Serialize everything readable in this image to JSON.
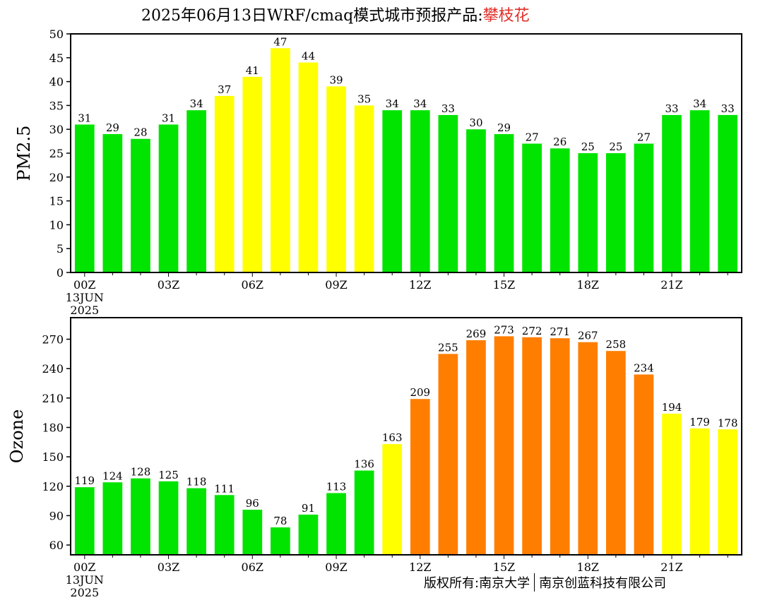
{
  "title": {
    "prefix": "2025年06月13日WRF/cmaq模式城市预报产品:",
    "city": "攀枝花"
  },
  "copyright": {
    "left": "版权所有:南京大学",
    "right": "南京创蓝科技有限公司"
  },
  "colors": {
    "green": "#00e400",
    "yellow": "#ffff00",
    "orange": "#ff7e00"
  },
  "chart_data": [
    {
      "type": "bar",
      "ylabel": "PM2.5",
      "ylim": [
        0,
        50
      ],
      "yticks": [
        0,
        5,
        10,
        15,
        20,
        25,
        30,
        35,
        40,
        45,
        50
      ],
      "x_tick_labels": [
        {
          "index": 0,
          "lines": [
            "00Z",
            "13JUN",
            "2025"
          ]
        },
        {
          "index": 3,
          "lines": [
            "03Z"
          ]
        },
        {
          "index": 6,
          "lines": [
            "06Z"
          ]
        },
        {
          "index": 9,
          "lines": [
            "09Z"
          ]
        },
        {
          "index": 12,
          "lines": [
            "12Z"
          ]
        },
        {
          "index": 15,
          "lines": [
            "15Z"
          ]
        },
        {
          "index": 18,
          "lines": [
            "18Z"
          ]
        },
        {
          "index": 21,
          "lines": [
            "21Z"
          ]
        }
      ],
      "values": [
        31,
        29,
        28,
        31,
        34,
        37,
        41,
        47,
        44,
        39,
        35,
        34,
        34,
        33,
        30,
        29,
        27,
        26,
        25,
        25,
        27,
        33,
        34,
        33
      ],
      "labels": [
        "31",
        "29",
        "28",
        "31",
        "34",
        "37",
        "41",
        "47",
        "44",
        "39",
        "35",
        "34",
        "34",
        "33",
        "30",
        "29",
        "27",
        "26",
        "25",
        "25",
        "27",
        "33",
        "34",
        "33"
      ],
      "bar_colors": [
        "green",
        "green",
        "green",
        "green",
        "green",
        "yellow",
        "yellow",
        "yellow",
        "yellow",
        "yellow",
        "yellow",
        "green",
        "green",
        "green",
        "green",
        "green",
        "green",
        "green",
        "green",
        "green",
        "green",
        "green",
        "green",
        "green"
      ]
    },
    {
      "type": "bar",
      "ylabel": "Ozone",
      "ylim": [
        50,
        292
      ],
      "yticks": [
        60,
        90,
        120,
        150,
        180,
        210,
        240,
        270
      ],
      "x_tick_labels": [
        {
          "index": 0,
          "lines": [
            "00Z",
            "13JUN",
            "2025"
          ]
        },
        {
          "index": 3,
          "lines": [
            "03Z"
          ]
        },
        {
          "index": 6,
          "lines": [
            "06Z"
          ]
        },
        {
          "index": 9,
          "lines": [
            "09Z"
          ]
        },
        {
          "index": 12,
          "lines": [
            "12Z"
          ]
        },
        {
          "index": 15,
          "lines": [
            "15Z"
          ]
        },
        {
          "index": 18,
          "lines": [
            "18Z"
          ]
        },
        {
          "index": 21,
          "lines": [
            "21Z"
          ]
        }
      ],
      "values": [
        119,
        124,
        128,
        125,
        118,
        111,
        96,
        78,
        91,
        113,
        136,
        163,
        209,
        255,
        269,
        273,
        272,
        271,
        267,
        258,
        234,
        194,
        179,
        178
      ],
      "labels": [
        "119",
        "124",
        "128",
        "125",
        "118",
        "111",
        "96",
        "78",
        "91",
        "113",
        "136",
        "163",
        "209",
        "255",
        "269",
        "273",
        "272",
        "271",
        "267",
        "258",
        "234",
        "194",
        "179",
        "178"
      ],
      "bar_colors": [
        "green",
        "green",
        "green",
        "green",
        "green",
        "green",
        "green",
        "green",
        "green",
        "green",
        "green",
        "yellow",
        "orange",
        "orange",
        "orange",
        "orange",
        "orange",
        "orange",
        "orange",
        "orange",
        "orange",
        "yellow",
        "yellow",
        "yellow"
      ]
    }
  ]
}
